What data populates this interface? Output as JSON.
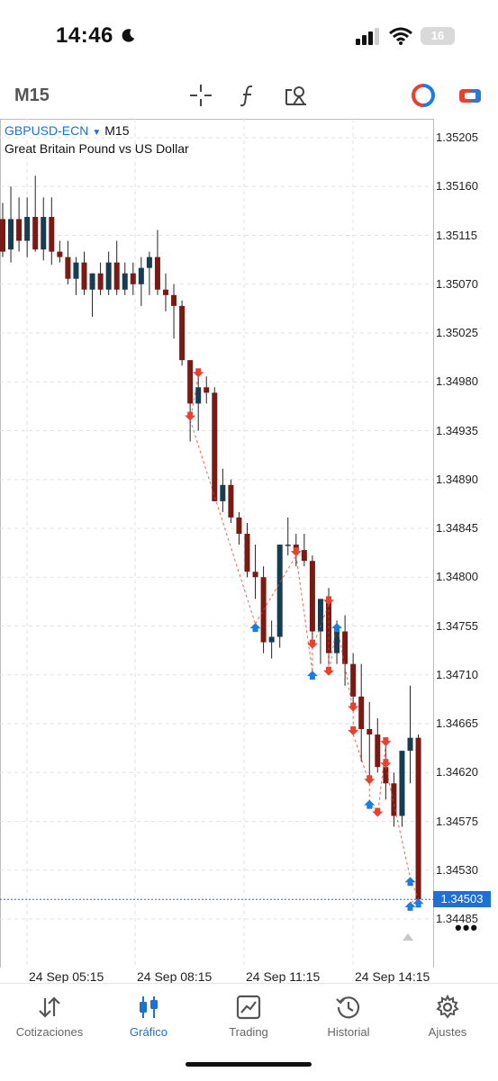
{
  "status_bar": {
    "time": "14:46",
    "battery": "16"
  },
  "toolbar": {
    "timeframe": "M15",
    "icons": [
      "crosshair-icon",
      "function-icon",
      "objects-icon",
      "trade-icon",
      "account-icon"
    ]
  },
  "symbol": {
    "name": "GBPUSD-ECN",
    "timeframe": "M15",
    "description": "Great Britain Pound vs US Dollar"
  },
  "chart_data": {
    "type": "candlestick",
    "title": "GBPUSD-ECN M15",
    "ylim": [
      1.34485,
      1.35205
    ],
    "price_ticks": [
      "1.35205",
      "1.35160",
      "1.35115",
      "1.35070",
      "1.35025",
      "1.34980",
      "1.34935",
      "1.34890",
      "1.34845",
      "1.34800",
      "1.34755",
      "1.34710",
      "1.34665",
      "1.34620",
      "1.34575",
      "1.34530",
      "1.34485"
    ],
    "time_labels": [
      "24 Sep 05:15",
      "24 Sep 08:15",
      "24 Sep 11:15",
      "24 Sep 14:15"
    ],
    "current_price": "1.34503",
    "grid": true,
    "candles": [
      {
        "o": 1.3513,
        "h": 1.35145,
        "l": 1.35095,
        "c": 1.351
      },
      {
        "o": 1.35102,
        "h": 1.3516,
        "l": 1.3509,
        "c": 1.3513
      },
      {
        "o": 1.3513,
        "h": 1.3515,
        "l": 1.351,
        "c": 1.3511
      },
      {
        "o": 1.3511,
        "h": 1.3515,
        "l": 1.35095,
        "c": 1.35132
      },
      {
        "o": 1.35132,
        "h": 1.3517,
        "l": 1.351,
        "c": 1.35102
      },
      {
        "o": 1.35102,
        "h": 1.3515,
        "l": 1.35092,
        "c": 1.35132
      },
      {
        "o": 1.35132,
        "h": 1.3515,
        "l": 1.35088,
        "c": 1.351
      },
      {
        "o": 1.351,
        "h": 1.3511,
        "l": 1.3509,
        "c": 1.35095
      },
      {
        "o": 1.35095,
        "h": 1.3511,
        "l": 1.3507,
        "c": 1.35075
      },
      {
        "o": 1.35075,
        "h": 1.35095,
        "l": 1.3506,
        "c": 1.3509
      },
      {
        "o": 1.3509,
        "h": 1.351,
        "l": 1.3506,
        "c": 1.35065
      },
      {
        "o": 1.35065,
        "h": 1.3508,
        "l": 1.3504,
        "c": 1.3508
      },
      {
        "o": 1.3508,
        "h": 1.3509,
        "l": 1.3506,
        "c": 1.35065
      },
      {
        "o": 1.35065,
        "h": 1.351,
        "l": 1.3506,
        "c": 1.3509
      },
      {
        "o": 1.3509,
        "h": 1.3511,
        "l": 1.3506,
        "c": 1.35065
      },
      {
        "o": 1.35065,
        "h": 1.3509,
        "l": 1.3506,
        "c": 1.3508
      },
      {
        "o": 1.3508,
        "h": 1.3509,
        "l": 1.3506,
        "c": 1.3507
      },
      {
        "o": 1.3507,
        "h": 1.35095,
        "l": 1.3505,
        "c": 1.35085
      },
      {
        "o": 1.35085,
        "h": 1.351,
        "l": 1.3506,
        "c": 1.35095
      },
      {
        "o": 1.35095,
        "h": 1.3512,
        "l": 1.3506,
        "c": 1.35065
      },
      {
        "o": 1.35065,
        "h": 1.3508,
        "l": 1.35045,
        "c": 1.3506
      },
      {
        "o": 1.3506,
        "h": 1.3507,
        "l": 1.3502,
        "c": 1.3505
      },
      {
        "o": 1.3505,
        "h": 1.35055,
        "l": 1.34995,
        "c": 1.35
      },
      {
        "o": 1.35,
        "h": 1.35,
        "l": 1.34925,
        "c": 1.3496
      },
      {
        "o": 1.3496,
        "h": 1.3499,
        "l": 1.34935,
        "c": 1.34975
      },
      {
        "o": 1.34975,
        "h": 1.34985,
        "l": 1.3496,
        "c": 1.3497
      },
      {
        "o": 1.3497,
        "h": 1.34975,
        "l": 1.3487,
        "c": 1.3487
      },
      {
        "o": 1.3487,
        "h": 1.349,
        "l": 1.3486,
        "c": 1.34885
      },
      {
        "o": 1.34885,
        "h": 1.3489,
        "l": 1.3485,
        "c": 1.34855
      },
      {
        "o": 1.34855,
        "h": 1.3486,
        "l": 1.3483,
        "c": 1.3484
      },
      {
        "o": 1.3484,
        "h": 1.3485,
        "l": 1.348,
        "c": 1.34805
      },
      {
        "o": 1.34805,
        "h": 1.3483,
        "l": 1.3478,
        "c": 1.348
      },
      {
        "o": 1.348,
        "h": 1.3481,
        "l": 1.3473,
        "c": 1.3474
      },
      {
        "o": 1.3474,
        "h": 1.3476,
        "l": 1.34725,
        "c": 1.34745
      },
      {
        "o": 1.34745,
        "h": 1.3483,
        "l": 1.34735,
        "c": 1.3483
      },
      {
        "o": 1.3483,
        "h": 1.34855,
        "l": 1.3482,
        "c": 1.3483
      },
      {
        "o": 1.3483,
        "h": 1.3484,
        "l": 1.3481,
        "c": 1.34825
      },
      {
        "o": 1.34825,
        "h": 1.3484,
        "l": 1.3481,
        "c": 1.34815
      },
      {
        "o": 1.34815,
        "h": 1.3482,
        "l": 1.3474,
        "c": 1.3475
      },
      {
        "o": 1.3475,
        "h": 1.3478,
        "l": 1.3472,
        "c": 1.3478
      },
      {
        "o": 1.3478,
        "h": 1.3479,
        "l": 1.3472,
        "c": 1.3473
      },
      {
        "o": 1.3473,
        "h": 1.3476,
        "l": 1.3472,
        "c": 1.3475
      },
      {
        "o": 1.3475,
        "h": 1.34765,
        "l": 1.347,
        "c": 1.3472
      },
      {
        "o": 1.3472,
        "h": 1.3473,
        "l": 1.3468,
        "c": 1.3469
      },
      {
        "o": 1.3469,
        "h": 1.3472,
        "l": 1.3463,
        "c": 1.3466
      },
      {
        "o": 1.3466,
        "h": 1.34685,
        "l": 1.3461,
        "c": 1.34655
      },
      {
        "o": 1.34655,
        "h": 1.3467,
        "l": 1.3462,
        "c": 1.34625
      },
      {
        "o": 1.34625,
        "h": 1.34645,
        "l": 1.34595,
        "c": 1.3461
      },
      {
        "o": 1.3461,
        "h": 1.3462,
        "l": 1.3457,
        "c": 1.3458
      },
      {
        "o": 1.3458,
        "h": 1.3464,
        "l": 1.3457,
        "c": 1.3464
      },
      {
        "o": 1.3464,
        "h": 1.347,
        "l": 1.3461,
        "c": 1.34652
      },
      {
        "o": 1.34652,
        "h": 1.34655,
        "l": 1.345,
        "c": 1.34503
      }
    ],
    "trade_arrows": [
      {
        "i": 24,
        "p": 1.34985,
        "dir": "sell"
      },
      {
        "i": 23,
        "p": 1.34945,
        "dir": "sell"
      },
      {
        "i": 31,
        "p": 1.34757,
        "dir": "buy"
      },
      {
        "i": 36,
        "p": 1.3482,
        "dir": "sell"
      },
      {
        "i": 38,
        "p": 1.34713,
        "dir": "buy"
      },
      {
        "i": 38,
        "p": 1.34735,
        "dir": "sell"
      },
      {
        "i": 40,
        "p": 1.34775,
        "dir": "sell"
      },
      {
        "i": 40,
        "p": 1.3471,
        "dir": "sell"
      },
      {
        "i": 41,
        "p": 1.34757,
        "dir": "buy"
      },
      {
        "i": 43,
        "p": 1.34677,
        "dir": "sell"
      },
      {
        "i": 43,
        "p": 1.34655,
        "dir": "sell"
      },
      {
        "i": 45,
        "p": 1.3461,
        "dir": "sell"
      },
      {
        "i": 45,
        "p": 1.34594,
        "dir": "buy"
      },
      {
        "i": 46,
        "p": 1.3458,
        "dir": "sell"
      },
      {
        "i": 47,
        "p": 1.34645,
        "dir": "sell"
      },
      {
        "i": 47,
        "p": 1.34625,
        "dir": "sell"
      },
      {
        "i": 50,
        "p": 1.34523,
        "dir": "buy"
      },
      {
        "i": 51,
        "p": 1.34503,
        "dir": "buy"
      },
      {
        "i": 50,
        "p": 1.345,
        "dir": "buy"
      }
    ],
    "colors": {
      "bull": "#163d52",
      "bear": "#7a1a14",
      "sell": "#e8412f",
      "buy": "#1e7be6",
      "grid": "#e2e2e2",
      "price_line": "#1e6fd6"
    }
  },
  "tabs": [
    {
      "label": "Cotizaciones",
      "icon": "quotes-icon",
      "active": false
    },
    {
      "label": "Gráfico",
      "icon": "chart-icon",
      "active": true
    },
    {
      "label": "Trading",
      "icon": "trading-icon",
      "active": false
    },
    {
      "label": "Historial",
      "icon": "history-icon",
      "active": false
    },
    {
      "label": "Ajustes",
      "icon": "settings-icon",
      "active": false
    }
  ]
}
